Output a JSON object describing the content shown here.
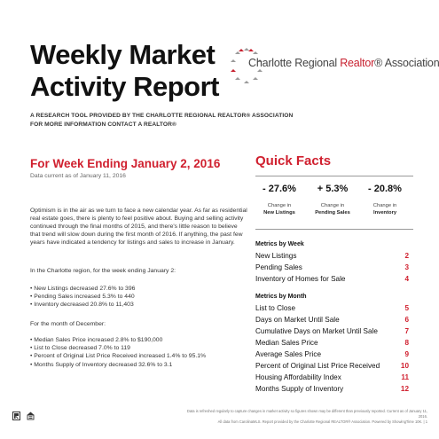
{
  "header": {
    "title_line1": "Weekly Market",
    "title_line2": "Activity Report",
    "subhead_line1": "A RESEARCH TOOL PROVIDED BY THE CHARLOTTE REGIONAL REALTOR® ASSOCIATION",
    "subhead_line2": "FOR MORE INFORMATION CONTACT A REALTOR®",
    "logo": {
      "text_before": "Charlotte Regional ",
      "text_accent": "Realtor",
      "text_after": "® Association",
      "brand_color": "#c8202f"
    }
  },
  "left": {
    "week_title": "For Week Ending January 2, 2016",
    "data_current": "Data current as of January 11, 2016",
    "intro": "Optimism is in the air as we turn to face a new calendar year. As far as residential real estate goes, there is plenty to feel positive about. Buying and selling activity continued through the final months of 2015, and there's little reason to believe that trend will slow down during the first month of 2016. If anything, the past few years have indicated a tendency for listings and sales to increase in January.",
    "region_intro": "In the Charlotte region, for the week ending January 2:",
    "week_bullets": [
      "• New Listings decreased 27.6% to 396",
      "• Pending Sales increased 5.3% to 440",
      "• Inventory decreased 20.8% to 11,403"
    ],
    "month_intro": "For the month of December:",
    "month_bullets": [
      "• Median Sales Price increased 2.8% to $190,000",
      "• List to Close decreased 7.0% to 119",
      "• Percent of Original List Price Received increased 1.4% to 95.1%",
      "• Months Supply of Inventory decreased 32.6% to 3.1"
    ]
  },
  "quick_facts": {
    "title": "Quick Facts",
    "stats": [
      {
        "value": "- 27.6%",
        "caption_line1": "Change in",
        "caption_line2": "New Listings"
      },
      {
        "value": "+ 5.3%",
        "caption_line1": "Change in",
        "caption_line2": "Pending Sales"
      },
      {
        "value": "- 20.8%",
        "caption_line1": "Change in",
        "caption_line2": "Inventory"
      }
    ],
    "week_section_title": "Metrics by Week",
    "week_metrics": [
      {
        "label": "New Listings",
        "page": "2"
      },
      {
        "label": "Pending Sales",
        "page": "3"
      },
      {
        "label": "Inventory of Homes for Sale",
        "page": "4"
      }
    ],
    "month_section_title": "Metrics by Month",
    "month_metrics": [
      {
        "label": "List to Close",
        "page": "5"
      },
      {
        "label": "Days on Market Until Sale",
        "page": "6"
      },
      {
        "label": "Cumulative Days on Market Until Sale",
        "page": "7"
      },
      {
        "label": "Median Sales Price",
        "page": "8"
      },
      {
        "label": "Average Sales Price",
        "page": "9"
      },
      {
        "label": "Percent of Original List Price Received",
        "page": "10"
      },
      {
        "label": "Housing Affordability Index",
        "page": "11"
      },
      {
        "label": "Months Supply of Inventory",
        "page": "12"
      }
    ]
  },
  "footer": {
    "line1": "Data is refreshed regularly to capture changes in market activity so figures shown may be different than previously reported. Current as of January 11, 2016.",
    "line2": "All data from CarolinaMLS. Report provided by the Charlotte Regional REALTOR® Association. Powered by ShowingTime 10K. | 1",
    "icons": [
      "realtor-r-icon",
      "equal-housing-icon"
    ]
  },
  "colors": {
    "accent_red": "#d0202f",
    "text": "#222222"
  }
}
